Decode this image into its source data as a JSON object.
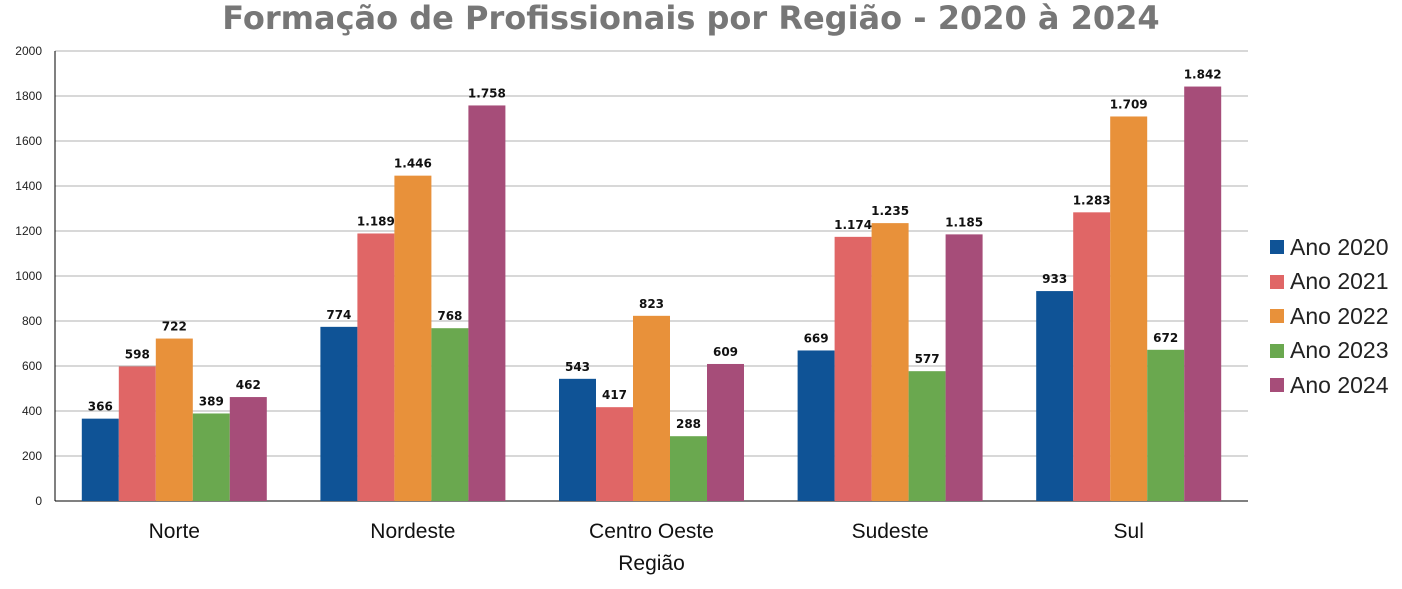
{
  "chart_data": {
    "type": "bar",
    "title": "Formação de Profissionais por Região - 2020 à 2024",
    "xlabel": "Região",
    "ylabel": "",
    "ylim": [
      0,
      2000
    ],
    "yticks": [
      0,
      200,
      400,
      600,
      800,
      1000,
      1200,
      1400,
      1600,
      1800,
      2000
    ],
    "grid": true,
    "legend_position": "right",
    "categories": [
      "Norte",
      "Nordeste",
      "Centro Oeste",
      "Sudeste",
      "Sul"
    ],
    "series": [
      {
        "name": "Ano 2020",
        "color": "#0f5396",
        "values": [
          366,
          774,
          543,
          669,
          933
        ],
        "labels": [
          "366",
          "774",
          "543",
          "669",
          "933"
        ]
      },
      {
        "name": "Ano 2021",
        "color": "#e06666",
        "values": [
          598,
          1189,
          417,
          1174,
          1283
        ],
        "labels": [
          "598",
          "1.189",
          "417",
          "1.174",
          "1.283"
        ]
      },
      {
        "name": "Ano 2022",
        "color": "#e8913a",
        "values": [
          722,
          1446,
          823,
          1235,
          1709
        ],
        "labels": [
          "722",
          "1.446",
          "823",
          "1.235",
          "1.709"
        ]
      },
      {
        "name": "Ano 2023",
        "color": "#6aa84f",
        "values": [
          389,
          768,
          288,
          577,
          672
        ],
        "labels": [
          "389",
          "768",
          "288",
          "577",
          "672"
        ]
      },
      {
        "name": "Ano 2024",
        "color": "#a64d79",
        "values": [
          462,
          1758,
          609,
          1185,
          1842
        ],
        "labels": [
          "462",
          "1.758",
          "609",
          "1.185",
          "1.842"
        ]
      }
    ]
  }
}
